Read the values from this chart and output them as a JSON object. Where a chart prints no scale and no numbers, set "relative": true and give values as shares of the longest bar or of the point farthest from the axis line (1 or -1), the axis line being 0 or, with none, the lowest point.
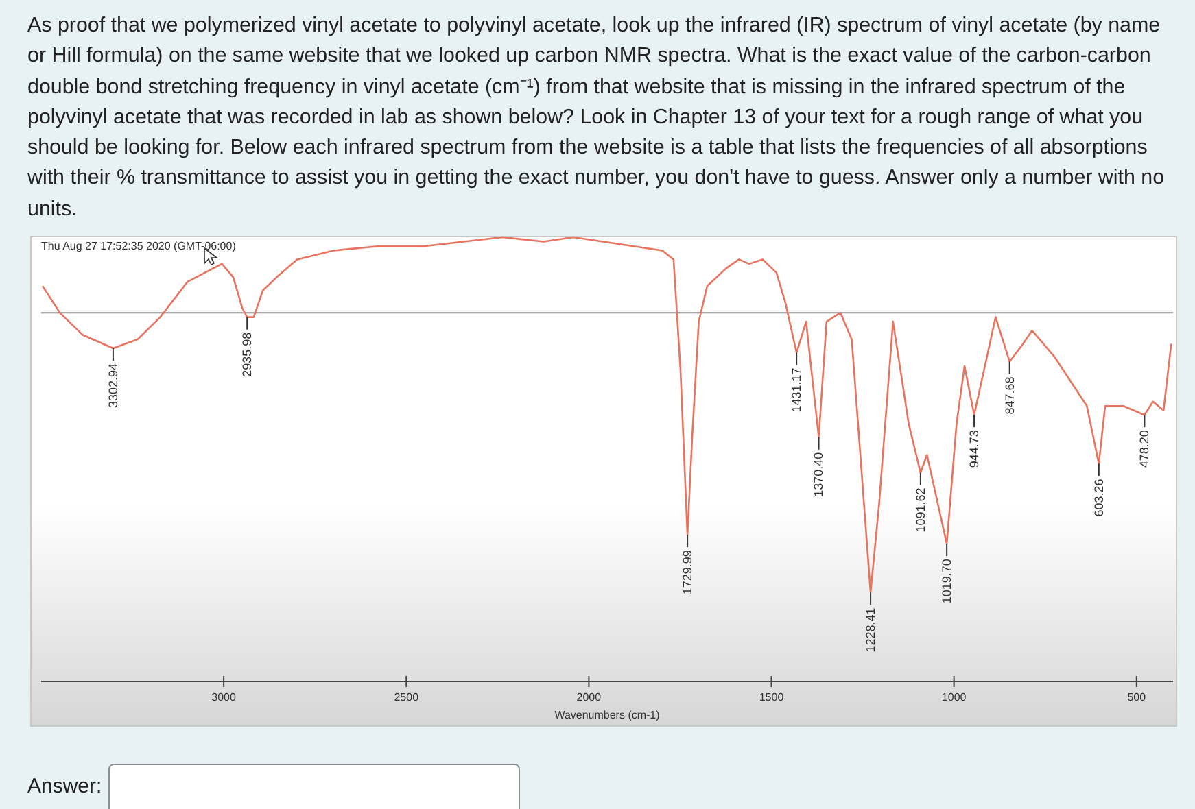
{
  "chart_data": {
    "type": "line",
    "title": "As proof that we polymerized vinyl acetate to polyvinyl acetate, look up the infrared (IR) spectrum of vinyl acetate (by name or Hill formula) on the same website that we looked up carbon NMR spectra.  What is the exact value of the carbon-carbon double bond stretching frequency in vinyl acetate (cm⁻¹) from that website that is missing in the infrared spectrum of the polyvinyl acetate that was recorded in lab as shown below?  Look in Chapter 13 of your text for a rough range of what you should be looking for.  Below each infrared spectrum from the website is a table that lists the frequencies of all absorptions with their % transmittance to assist you in getting the exact number, you don't have to guess.  Answer only a number with no units.",
    "xlabel": "Wavenumbers (cm-1)",
    "relative": true,
    "xlim": [
      3500,
      400
    ],
    "xticks": [
      3000,
      2500,
      2000,
      1500,
      1000,
      500
    ],
    "ref_lines": [
      {
        "axis": "y",
        "value": 0.83,
        "color": "#8c8c8c"
      }
    ],
    "series": [
      {
        "color": "#e8735f",
        "x": [
          3496,
          3449,
          3386,
          3302.94,
          3236,
          3174,
          3099,
          3005,
          2974,
          2949,
          2935.98,
          2918,
          2893,
          2855,
          2799,
          2699,
          2574,
          2449,
          2236,
          2124,
          2043,
          1961,
          1799,
          1768,
          1749,
          1729.99,
          1717,
          1699,
          1676,
          1624,
          1589,
          1561,
          1524,
          1486,
          1461,
          1431.17,
          1405,
          1370.4,
          1349,
          1311,
          1280,
          1228.41,
          1205,
          1167,
          1124,
          1091.62,
          1074,
          1019.7,
          993,
          971,
          944.73,
          886,
          847.68,
          811,
          786,
          724,
          636,
          603.26,
          586,
          536,
          478.2,
          455,
          426,
          405
        ],
        "values": [
          0.89,
          0.83,
          0.78,
          0.75,
          0.77,
          0.82,
          0.9,
          0.94,
          0.91,
          0.84,
          0.82,
          0.82,
          0.88,
          0.91,
          0.95,
          0.97,
          0.98,
          0.98,
          1.0,
          0.99,
          1.0,
          0.99,
          0.97,
          0.95,
          0.7,
          0.33,
          0.55,
          0.81,
          0.89,
          0.93,
          0.95,
          0.94,
          0.95,
          0.92,
          0.85,
          0.74,
          0.81,
          0.55,
          0.81,
          0.83,
          0.77,
          0.2,
          0.4,
          0.81,
          0.58,
          0.47,
          0.51,
          0.31,
          0.58,
          0.71,
          0.6,
          0.82,
          0.72,
          0.76,
          0.79,
          0.73,
          0.62,
          0.49,
          0.62,
          0.62,
          0.6,
          0.63,
          0.61,
          0.76
        ]
      }
    ],
    "annotations": [
      "Thu Aug 27 17:52:35 2020 (GMT-06:00)",
      "Answer:",
      {
        "text": "3302.94",
        "x": 3302.94,
        "y": 0.75
      },
      {
        "text": "2935.98",
        "x": 2935.98,
        "y": 0.82
      },
      {
        "text": "1729.99",
        "x": 1729.99,
        "y": 0.33
      },
      {
        "text": "1431.17",
        "x": 1431.17,
        "y": 0.74
      },
      {
        "text": "1370.40",
        "x": 1370.4,
        "y": 0.55
      },
      {
        "text": "1228.41",
        "x": 1228.41,
        "y": 0.2
      },
      {
        "text": "1091.62",
        "x": 1091.62,
        "y": 0.47
      },
      {
        "text": "1019.70",
        "x": 1019.7,
        "y": 0.31
      },
      {
        "text": "944.73",
        "x": 944.73,
        "y": 0.6
      },
      {
        "text": "847.68",
        "x": 847.68,
        "y": 0.72
      },
      {
        "text": "603.26",
        "x": 603.26,
        "y": 0.49
      },
      {
        "text": "478.20",
        "x": 478.2,
        "y": 0.6
      }
    ]
  }
}
